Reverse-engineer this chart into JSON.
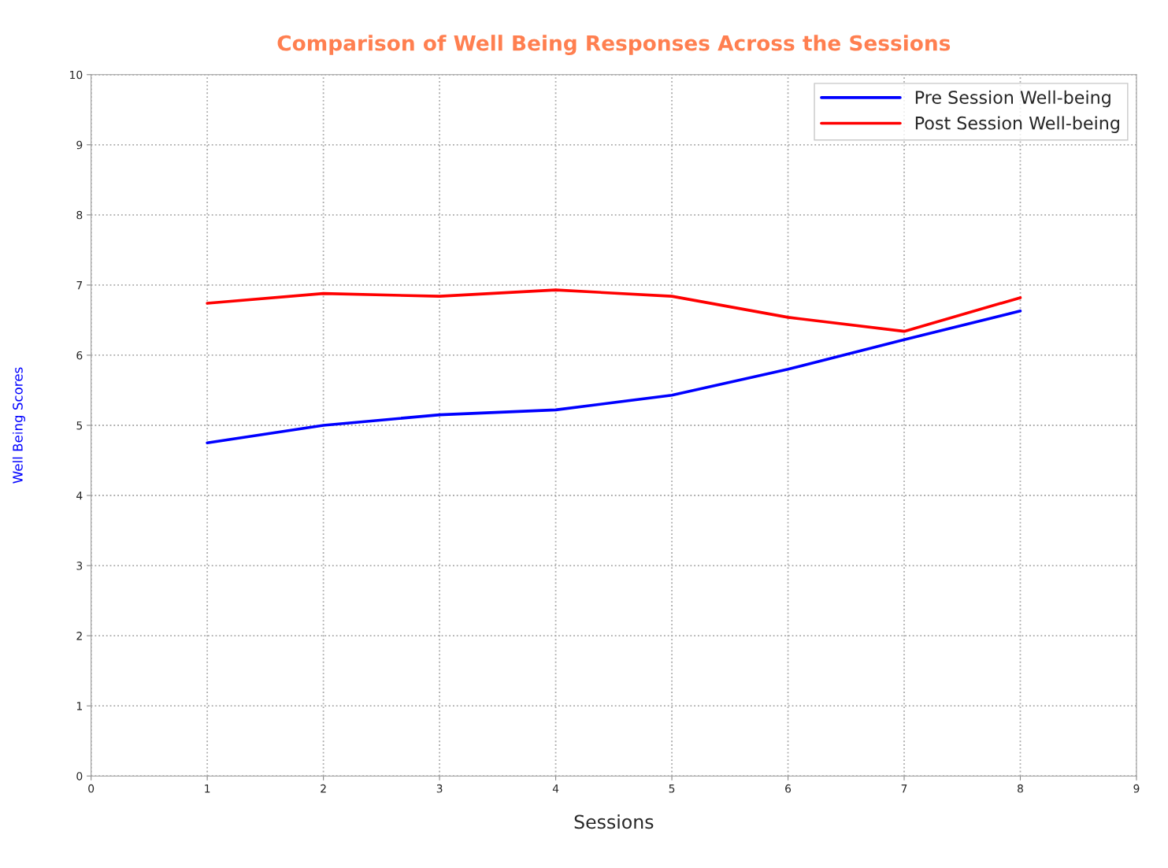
{
  "chart_data": {
    "type": "line",
    "title": "Comparison of Well Being Responses Across the Sessions",
    "xlabel": "Sessions",
    "ylabel": "Well Being Scores",
    "x": [
      1,
      2,
      3,
      4,
      5,
      6,
      7,
      8
    ],
    "series": [
      {
        "name": "Pre Session Well-being",
        "color": "#0000ff",
        "values": [
          4.75,
          5.0,
          5.15,
          5.22,
          5.43,
          5.8,
          6.22,
          6.63
        ]
      },
      {
        "name": "Post Session Well-being",
        "color": "#ff0000",
        "values": [
          6.74,
          6.88,
          6.84,
          6.93,
          6.84,
          6.54,
          6.34,
          6.82
        ]
      }
    ],
    "xlim": [
      0,
      9
    ],
    "xticks": [
      0,
      1,
      2,
      3,
      4,
      5,
      6,
      7,
      8,
      9
    ],
    "ylim": [
      0,
      10
    ],
    "yticks": [
      0,
      1,
      2,
      3,
      4,
      5,
      6,
      7,
      8,
      9,
      10
    ],
    "grid": true,
    "legend": "top right",
    "marker": "none",
    "line_style": "solid"
  }
}
